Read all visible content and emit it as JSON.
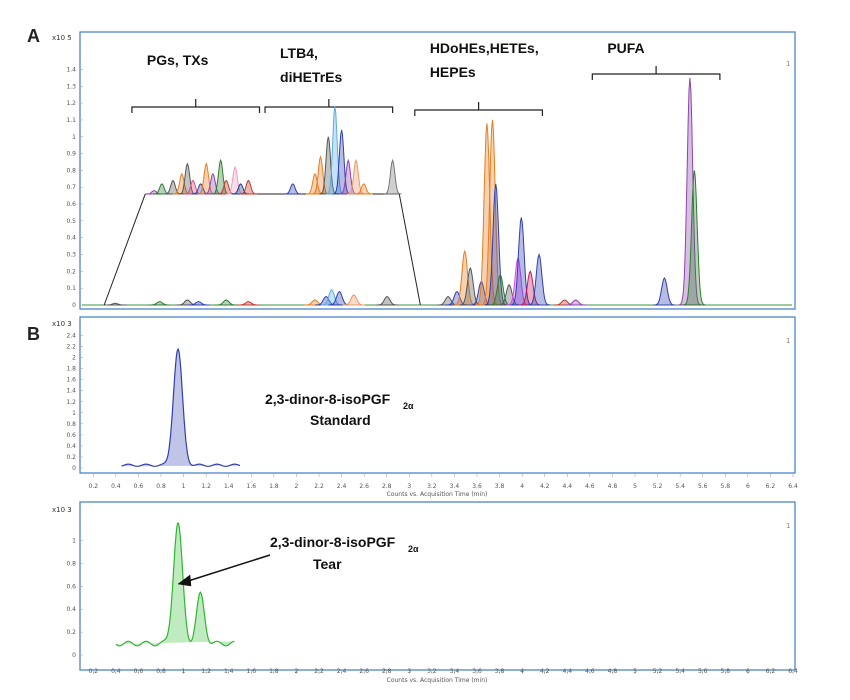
{
  "chart_data": [
    {
      "panel": "A",
      "type": "line",
      "y_multiplier": "x10 5",
      "corner_mark": "1",
      "yticks": [
        "0",
        "0.1",
        "0.2",
        "0.3",
        "0.4",
        "0.5",
        "0.6",
        "0.7",
        "0.8",
        "0.9",
        "1",
        "1.1",
        "1.2",
        "1.3",
        "1.4"
      ],
      "ylim": [
        0,
        1.48
      ],
      "xlim": [
        0,
        6.4
      ],
      "groups": [
        {
          "lines": [
            "PGs, TXs"
          ],
          "x_range": [
            0.45,
            1.6
          ]
        },
        {
          "lines": [
            "LTB4,",
            "diHETrEs"
          ],
          "x_range": [
            1.65,
            2.8
          ]
        },
        {
          "lines": [
            "HDoHEs,HETEs,",
            "HEPEs"
          ],
          "x_range": [
            3.0,
            4.15
          ]
        },
        {
          "lines": [
            "PUFA"
          ],
          "x_range": [
            4.6,
            5.75
          ]
        }
      ],
      "inset": {
        "description_x_range": [
          0.3,
          2.95
        ],
        "peaks": [
          {
            "x": 0.65,
            "y": 0.68,
            "color": "#8e44ad"
          },
          {
            "x": 0.72,
            "y": 0.72,
            "color": "#2e7d32"
          },
          {
            "x": 0.82,
            "y": 0.74,
            "color": "#555555"
          },
          {
            "x": 0.9,
            "y": 0.78,
            "color": "#e67e22"
          },
          {
            "x": 0.95,
            "y": 0.84,
            "color": "#555555"
          },
          {
            "x": 1.0,
            "y": 0.74,
            "color": "#d35480"
          },
          {
            "x": 1.07,
            "y": 0.72,
            "color": "#2f3fae"
          },
          {
            "x": 1.12,
            "y": 0.84,
            "color": "#e67e22"
          },
          {
            "x": 1.18,
            "y": 0.78,
            "color": "#8e44ad"
          },
          {
            "x": 1.25,
            "y": 0.86,
            "color": "#2e7d32"
          },
          {
            "x": 1.3,
            "y": 0.74,
            "color": "#c0392b"
          },
          {
            "x": 1.38,
            "y": 0.82,
            "color": "#ec9ec0"
          },
          {
            "x": 1.43,
            "y": 0.72,
            "color": "#1f3d8a"
          },
          {
            "x": 1.5,
            "y": 0.74,
            "color": "#c0392b"
          },
          {
            "x": 1.9,
            "y": 0.72,
            "color": "#2f3fae"
          },
          {
            "x": 2.1,
            "y": 0.78,
            "color": "#e67e22"
          },
          {
            "x": 2.15,
            "y": 0.88,
            "color": "#e67e22"
          },
          {
            "x": 2.22,
            "y": 1.0,
            "color": "#555555"
          },
          {
            "x": 2.28,
            "y": 1.18,
            "color": "#5dade2"
          },
          {
            "x": 2.34,
            "y": 1.04,
            "color": "#2f3fae"
          },
          {
            "x": 2.4,
            "y": 0.86,
            "color": "#8e44ad"
          },
          {
            "x": 2.47,
            "y": 0.86,
            "color": "#e59866"
          },
          {
            "x": 2.54,
            "y": 0.72,
            "color": "#e67e22"
          },
          {
            "x": 2.8,
            "y": 0.86,
            "color": "#777777"
          }
        ]
      },
      "peaks": [
        {
          "x": 0.3,
          "y": 0.01,
          "color": "#555555"
        },
        {
          "x": 0.7,
          "y": 0.02,
          "color": "#2e7d32"
        },
        {
          "x": 0.95,
          "y": 0.03,
          "color": "#555555"
        },
        {
          "x": 1.05,
          "y": 0.02,
          "color": "#2f3fae"
        },
        {
          "x": 1.3,
          "y": 0.03,
          "color": "#2e7d32"
        },
        {
          "x": 1.5,
          "y": 0.02,
          "color": "#c0392b"
        },
        {
          "x": 2.1,
          "y": 0.03,
          "color": "#e67e22"
        },
        {
          "x": 2.2,
          "y": 0.05,
          "color": "#2f3fae"
        },
        {
          "x": 2.25,
          "y": 0.09,
          "color": "#5dade2"
        },
        {
          "x": 2.32,
          "y": 0.08,
          "color": "#2f3fae"
        },
        {
          "x": 2.45,
          "y": 0.06,
          "color": "#e59866"
        },
        {
          "x": 2.75,
          "y": 0.05,
          "color": "#555555"
        },
        {
          "x": 3.3,
          "y": 0.05,
          "color": "#555555"
        },
        {
          "x": 3.38,
          "y": 0.08,
          "color": "#2f3fae"
        },
        {
          "x": 3.45,
          "y": 0.32,
          "color": "#e67e22"
        },
        {
          "x": 3.5,
          "y": 0.22,
          "color": "#555555"
        },
        {
          "x": 3.6,
          "y": 0.14,
          "color": "#2f3fae"
        },
        {
          "x": 3.65,
          "y": 1.08,
          "color": "#e67e22"
        },
        {
          "x": 3.7,
          "y": 1.1,
          "color": "#e67e22"
        },
        {
          "x": 3.73,
          "y": 0.72,
          "color": "#2f3fae"
        },
        {
          "x": 3.77,
          "y": 0.18,
          "color": "#2e7d32"
        },
        {
          "x": 3.85,
          "y": 0.12,
          "color": "#555555"
        },
        {
          "x": 3.93,
          "y": 0.28,
          "color": "#d946ef"
        },
        {
          "x": 3.96,
          "y": 0.52,
          "color": "#2f3fae"
        },
        {
          "x": 4.04,
          "y": 0.2,
          "color": "#c2185b"
        },
        {
          "x": 4.12,
          "y": 0.3,
          "color": "#2f3fae"
        },
        {
          "x": 4.35,
          "y": 0.03,
          "color": "#c0392b"
        },
        {
          "x": 4.45,
          "y": 0.03,
          "color": "#8e44ad"
        },
        {
          "x": 5.25,
          "y": 0.16,
          "color": "#2f3fae"
        },
        {
          "x": 5.48,
          "y": 1.35,
          "color": "#8e44ad"
        },
        {
          "x": 5.52,
          "y": 0.8,
          "color": "#2e7d32"
        }
      ]
    },
    {
      "panel": "B",
      "type": "line",
      "y_multiplier": "x10 3",
      "corner_mark": "1",
      "yticks": [
        "0",
        "0.2",
        "0.4",
        "0.6",
        "0.8",
        "1",
        "1.2",
        "1.4",
        "1.6",
        "1.8",
        "2",
        "2.2",
        "2.4"
      ],
      "ylim": [
        0,
        2.5
      ],
      "xlim": [
        0.1,
        6.4
      ],
      "xticks": [
        "0.2",
        "0.4",
        "0.6",
        "0.8",
        "1",
        "1.2",
        "1.4",
        "1.6",
        "1.8",
        "2",
        "2.2",
        "2.4",
        "2.6",
        "2.8",
        "3",
        "3.2",
        "3.4",
        "3.6",
        "3.8",
        "4",
        "4.2",
        "4.4",
        "4.6",
        "4.8",
        "5",
        "5.2",
        "5.4",
        "5.6",
        "5.8",
        "6",
        "6.2",
        "6.4"
      ],
      "xlabel": "Counts vs. Acquisition Time (min)",
      "annotation": {
        "name_prefix": "2,3-dinor-8-isoPGF",
        "name_sub": "2α",
        "label": "Standard"
      },
      "trace": {
        "color": "#2f3fae",
        "x_range": [
          0.45,
          1.5
        ],
        "baseline": 0.05,
        "peaks": [
          {
            "x": 0.95,
            "y": 2.1,
            "width": 0.04
          }
        ]
      }
    },
    {
      "panel": "B2",
      "type": "line",
      "y_multiplier": "x10 3",
      "corner_mark": "1",
      "yticks": [
        "0",
        "0.2",
        "0.4",
        "0.6",
        "0.8",
        "1"
      ],
      "ylim": [
        0,
        1.18
      ],
      "xlim": [
        0.1,
        6.4
      ],
      "xticks": [
        "0.2",
        "0.4",
        "0.6",
        "0.8",
        "1",
        "1.2",
        "1.4",
        "1.6",
        "1.8",
        "2",
        "2.2",
        "2.4",
        "2.6",
        "2.8",
        "3",
        "3.2",
        "3.4",
        "3.6",
        "3.8",
        "4",
        "4.2",
        "4.4",
        "4.6",
        "4.8",
        "5",
        "5.2",
        "5.4",
        "5.6",
        "5.8",
        "6",
        "6.2",
        "6.4"
      ],
      "xlabel": "Counts vs. Acquisition Time (min)",
      "annotation": {
        "name_prefix": "2,3-dinor-8-isoPGF",
        "name_sub": "2α",
        "label": "Tear"
      },
      "trace": {
        "color": "#2eb82e",
        "x_range": [
          0.4,
          1.45
        ],
        "baseline": 0.1,
        "peaks": [
          {
            "x": 0.95,
            "y": 1.05,
            "width": 0.04
          },
          {
            "x": 1.15,
            "y": 0.43,
            "width": 0.035
          }
        ]
      }
    }
  ],
  "labels": {
    "panel_a": "A",
    "panel_b": "B"
  }
}
